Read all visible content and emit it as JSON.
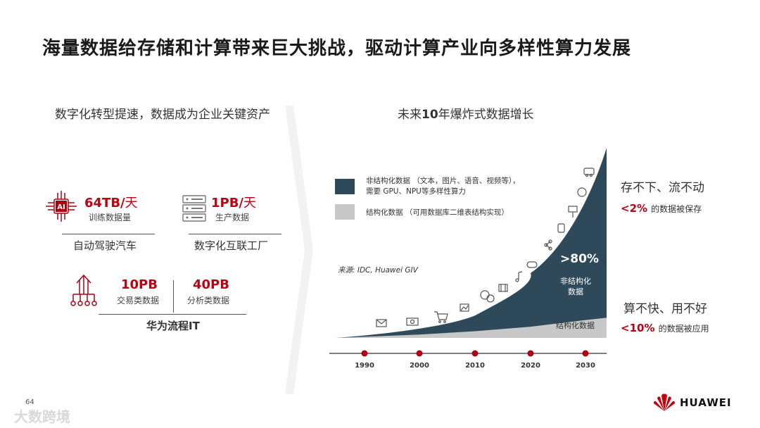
{
  "title": "海量数据给存储和计算带来巨大挑战，驱动计算产业向多样性算力发展",
  "left": {
    "heading": "数字化转型提速，数据成为企业关键资产",
    "autonomous": {
      "value": "64TB/",
      "unit": "天",
      "sub": "训练数据量",
      "label": "自动驾驶汽车",
      "icon": "ai-chip-icon",
      "icon_text": "AI"
    },
    "industrial": {
      "value": "1PB/",
      "unit": "天",
      "sub": "生产数据",
      "label": "数字化互联工厂",
      "icon": "server-rack-icon"
    },
    "huawei_it": {
      "trade": {
        "value": "10PB",
        "sub": "交易类数据"
      },
      "analytics": {
        "value": "40PB",
        "sub": "分析类数据"
      },
      "label": "华为流程IT",
      "icon": "upload-network-icon"
    }
  },
  "right": {
    "heading_pre": "未来",
    "heading_bold": "10",
    "heading_post": "年爆炸式数据增长",
    "legend": {
      "unstructured_line1": "非结构化数据 （文本，图片、语音、视频等），",
      "unstructured_line2": "需要 GPU、NPU等多样性算力",
      "structured": "结构化数据 （可用数据库二维表结构实现）",
      "unstructured_color": "#2e4a5a",
      "structured_color": "#c8c8c8"
    },
    "source": "来源: IDC, Huawei GIV",
    "big_pct": ">80%",
    "unstructured_label_1": "非结构化",
    "unstructured_label_2": "数据",
    "structured_label": "结构化数据",
    "years": [
      "1990",
      "2000",
      "2010",
      "2020",
      "2030"
    ],
    "marker_color": "#b00010"
  },
  "chart_data": {
    "type": "area",
    "x": [
      "1990",
      "2000",
      "2010",
      "2020",
      "2030"
    ],
    "series": [
      {
        "name": "结构化数据",
        "values": [
          1,
          3,
          6,
          10,
          16
        ]
      },
      {
        "name": "非结构化数据",
        "values": [
          2,
          7,
          20,
          58,
          165
        ]
      }
    ],
    "xlabel": "",
    "ylabel": "",
    "grid": false,
    "legend": "top-left"
  },
  "insights": {
    "storage_heading": "存不下、流不动",
    "storage_pct": "<2%",
    "storage_note": "的数据被保存",
    "compute_heading": "算不快、用不好",
    "compute_pct": "<10%",
    "compute_note": "的数据被应用"
  },
  "footer": {
    "page_number": "64",
    "watermark": "大数跨境",
    "logo": "HUAWEI",
    "logo_color": "#c7000b"
  }
}
